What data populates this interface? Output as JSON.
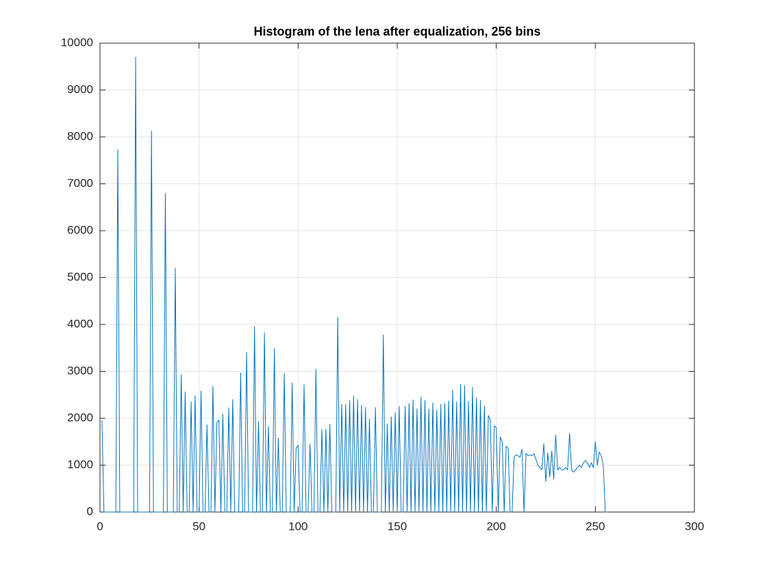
{
  "chart_data": {
    "type": "line",
    "title": "Histogram of the lena after equalization, 256 bins",
    "x": [
      1,
      2,
      3,
      4,
      5,
      6,
      7,
      8,
      9,
      10,
      11,
      12,
      13,
      14,
      15,
      16,
      17,
      18,
      19,
      20,
      21,
      22,
      23,
      24,
      25,
      26,
      27,
      28,
      29,
      30,
      31,
      32,
      33,
      34,
      35,
      36,
      37,
      38,
      39,
      40,
      41,
      42,
      43,
      44,
      45,
      46,
      47,
      48,
      49,
      50,
      51,
      52,
      53,
      54,
      55,
      56,
      57,
      58,
      59,
      60,
      61,
      62,
      63,
      64,
      65,
      66,
      67,
      68,
      69,
      70,
      71,
      72,
      73,
      74,
      75,
      76,
      77,
      78,
      79,
      80,
      81,
      82,
      83,
      84,
      85,
      86,
      87,
      88,
      89,
      90,
      91,
      92,
      93,
      94,
      95,
      96,
      97,
      98,
      99,
      100,
      101,
      102,
      103,
      104,
      105,
      106,
      107,
      108,
      109,
      110,
      111,
      112,
      113,
      114,
      115,
      116,
      117,
      118,
      119,
      120,
      121,
      122,
      123,
      124,
      125,
      126,
      127,
      128,
      129,
      130,
      131,
      132,
      133,
      134,
      135,
      136,
      137,
      138,
      139,
      140,
      141,
      142,
      143,
      144,
      145,
      146,
      147,
      148,
      149,
      150,
      151,
      152,
      153,
      154,
      155,
      156,
      157,
      158,
      159,
      160,
      161,
      162,
      163,
      164,
      165,
      166,
      167,
      168,
      169,
      170,
      171,
      172,
      173,
      174,
      175,
      176,
      177,
      178,
      179,
      180,
      181,
      182,
      183,
      184,
      185,
      186,
      187,
      188,
      189,
      190,
      191,
      192,
      193,
      194,
      195,
      196,
      197,
      198,
      199,
      200,
      201,
      202,
      203,
      204,
      205,
      206,
      207,
      208,
      209,
      210,
      211,
      212,
      213,
      214,
      215,
      216,
      217,
      218,
      219,
      220,
      221,
      222,
      223,
      224,
      225,
      226,
      227,
      228,
      229,
      230,
      231,
      232,
      233,
      234,
      235,
      236,
      237,
      238,
      239,
      240,
      241,
      242,
      243,
      244,
      245,
      246,
      247,
      248,
      249,
      250,
      251,
      252,
      253,
      254,
      255,
      256
    ],
    "series": [
      {
        "color": "#0072bd",
        "values": [
          1950,
          0,
          0,
          0,
          0,
          0,
          0,
          0,
          7730,
          0,
          0,
          0,
          0,
          0,
          0,
          0,
          0,
          9700,
          0,
          0,
          0,
          0,
          0,
          0,
          0,
          8130,
          0,
          0,
          0,
          0,
          0,
          0,
          6800,
          0,
          0,
          0,
          0,
          5200,
          0,
          0,
          2930,
          0,
          2560,
          0,
          0,
          2350,
          0,
          2480,
          0,
          0,
          2580,
          0,
          0,
          1860,
          0,
          0,
          2680,
          0,
          1900,
          1960,
          0,
          2090,
          0,
          0,
          2220,
          0,
          2400,
          0,
          0,
          0,
          2970,
          0,
          0,
          3410,
          0,
          0,
          0,
          3950,
          0,
          1930,
          0,
          0,
          3820,
          0,
          1830,
          0,
          0,
          3490,
          0,
          1580,
          0,
          0,
          2950,
          0,
          0,
          0,
          2760,
          0,
          1370,
          1420,
          0,
          0,
          2720,
          0,
          0,
          1450,
          0,
          0,
          3050,
          0,
          0,
          1760,
          0,
          1770,
          0,
          1870,
          0,
          0,
          0,
          4150,
          0,
          2300,
          0,
          2300,
          0,
          2380,
          0,
          2470,
          0,
          2400,
          0,
          2280,
          0,
          2230,
          0,
          1980,
          0,
          0,
          2230,
          0,
          0,
          0,
          3780,
          0,
          1880,
          0,
          2030,
          0,
          2120,
          0,
          2260,
          0,
          0,
          2260,
          0,
          2320,
          0,
          2390,
          0,
          2200,
          0,
          2450,
          0,
          2380,
          0,
          2200,
          0,
          2330,
          0,
          2180,
          0,
          2300,
          0,
          2320,
          0,
          2370,
          0,
          2600,
          0,
          2350,
          0,
          2720,
          0,
          2700,
          0,
          2360,
          0,
          2660,
          0,
          2440,
          0,
          2380,
          0,
          2260,
          0,
          2060,
          1960,
          0,
          1840,
          1800,
          0,
          1600,
          1500,
          0,
          1400,
          1360,
          0,
          0,
          1180,
          1220,
          1200,
          1170,
          1340,
          0,
          1250,
          1200,
          1220,
          1200,
          1240,
          1130,
          1000,
          950,
          900,
          1460,
          650,
          1260,
          750,
          1300,
          700,
          1640,
          900,
          950,
          900,
          900,
          950,
          900,
          1680,
          900,
          850,
          900,
          950,
          1000,
          950,
          1050,
          1100,
          1050,
          950,
          1050,
          950,
          1500,
          1000,
          1280,
          1200,
          1000,
          0,
          0
        ]
      }
    ],
    "xlim": [
      0,
      300
    ],
    "xticks": [
      0,
      50,
      100,
      150,
      200,
      250,
      300
    ],
    "ylim": [
      0,
      10000
    ],
    "yticks": [
      0,
      1000,
      2000,
      3000,
      4000,
      5000,
      6000,
      7000,
      8000,
      9000,
      10000
    ],
    "grid": true
  }
}
